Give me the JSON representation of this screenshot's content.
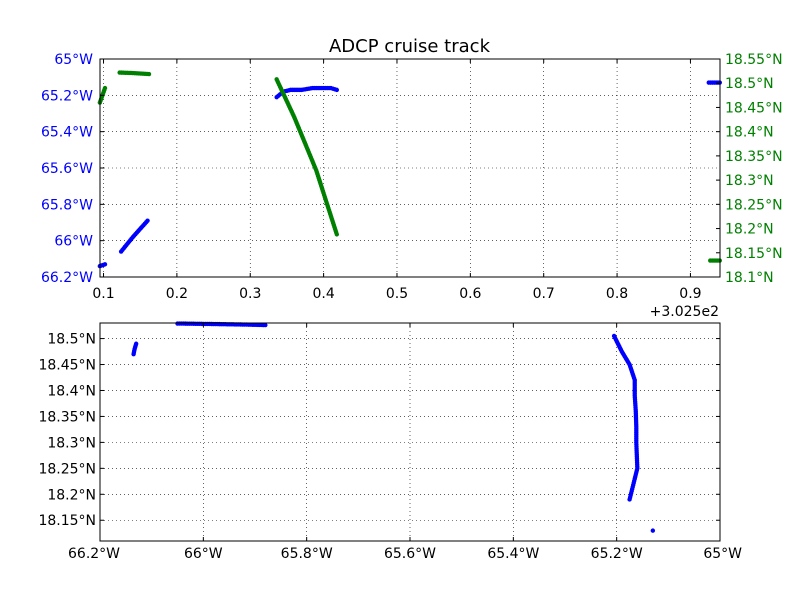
{
  "chart_data": [
    {
      "type": "scatter",
      "title": "ADCP cruise track",
      "x_offset_label": "+3.025e2",
      "xlim": [
        0.0952,
        0.9403
      ],
      "x_ticks": [
        "0.1",
        "0.2",
        "0.3",
        "0.4",
        "0.5",
        "0.6",
        "0.7",
        "0.8",
        "0.9"
      ],
      "x_tick_values": [
        0.1,
        0.2,
        0.3,
        0.4,
        0.5,
        0.6,
        0.7,
        0.8,
        0.9
      ],
      "grid": true,
      "left_axis": {
        "color": "#0000ff",
        "ylim": [
          -65.0,
          -66.2
        ],
        "ticks": [
          "65°W",
          "65.2°W",
          "65.4°W",
          "65.6°W",
          "65.8°W",
          "66°W",
          "66.2°W"
        ],
        "tick_values": [
          -65.0,
          -65.2,
          -65.4,
          -65.6,
          -65.8,
          -66.0,
          -66.2
        ]
      },
      "right_axis": {
        "color": "#008000",
        "ylim": [
          18.1,
          18.55
        ],
        "ticks": [
          "18.55°N",
          "18.5°N",
          "18.45°N",
          "18.4°N",
          "18.35°N",
          "18.3°N",
          "18.25°N",
          "18.2°N",
          "18.15°N",
          "18.1°N"
        ],
        "tick_values": [
          18.55,
          18.5,
          18.45,
          18.4,
          18.35,
          18.3,
          18.25,
          18.2,
          18.15,
          18.1
        ]
      },
      "series": [
        {
          "axis": "left",
          "color": "#0000ff",
          "segments": [
            {
              "x": [
                0.095,
                0.102
              ],
              "y": [
                -66.14,
                -66.13
              ]
            },
            {
              "x": [
                0.124,
                0.14,
                0.16
              ],
              "y": [
                -66.06,
                -65.98,
                -65.89
              ]
            },
            {
              "x": [
                0.336,
                0.345,
                0.355,
                0.37,
                0.385,
                0.4,
                0.41,
                0.418
              ],
              "y": [
                -65.21,
                -65.18,
                -65.17,
                -65.17,
                -65.16,
                -65.16,
                -65.16,
                -65.17
              ]
            },
            {
              "x": [
                0.925,
                0.94
              ],
              "y": [
                -65.13,
                -65.13
              ]
            }
          ]
        },
        {
          "axis": "right",
          "color": "#008000",
          "segments": [
            {
              "x": [
                0.095,
                0.102
              ],
              "y": [
                18.46,
                18.49
              ]
            },
            {
              "x": [
                0.122,
                0.14,
                0.162
              ],
              "y": [
                18.522,
                18.521,
                18.519
              ]
            },
            {
              "x": [
                0.336,
                0.36,
                0.39,
                0.418
              ],
              "y": [
                18.508,
                18.43,
                18.32,
                18.188
              ]
            },
            {
              "x": [
                0.927,
                0.94
              ],
              "y": [
                18.134,
                18.134
              ]
            }
          ]
        }
      ]
    },
    {
      "type": "scatter",
      "xlim": [
        -66.2,
        -65.0
      ],
      "ylim": [
        18.11,
        18.53
      ],
      "x_ticks": [
        "66.2°W",
        "66°W",
        "65.8°W",
        "65.6°W",
        "65.4°W",
        "65.2°W",
        "65°W"
      ],
      "x_tick_values": [
        -66.2,
        -66.0,
        -65.8,
        -65.6,
        -65.4,
        -65.2,
        -65.0
      ],
      "y_ticks": [
        "18.5°N",
        "18.45°N",
        "18.4°N",
        "18.35°N",
        "18.3°N",
        "18.25°N",
        "18.2°N",
        "18.15°N"
      ],
      "y_tick_values": [
        18.5,
        18.45,
        18.4,
        18.35,
        18.3,
        18.25,
        18.2,
        18.15
      ],
      "grid": true,
      "series": [
        {
          "color": "#0000ff",
          "segments": [
            {
              "x": [
                -66.05,
                -65.98,
                -65.92,
                -65.88
              ],
              "y": [
                18.529,
                18.528,
                18.527,
                18.526
              ]
            },
            {
              "x": [
                -66.13,
                -66.133,
                -66.135
              ],
              "y": [
                18.49,
                18.48,
                18.47
              ]
            },
            {
              "x": [
                -65.205,
                -65.19,
                -65.175,
                -65.165,
                -65.165,
                -65.163,
                -65.162,
                -65.162,
                -65.16,
                -65.165,
                -65.17,
                -65.175
              ],
              "y": [
                18.505,
                18.475,
                18.45,
                18.42,
                18.39,
                18.36,
                18.33,
                18.3,
                18.25,
                18.23,
                18.21,
                18.19
              ]
            },
            {
              "x": [
                -65.13
              ],
              "y": [
                18.13
              ]
            }
          ]
        }
      ]
    }
  ]
}
